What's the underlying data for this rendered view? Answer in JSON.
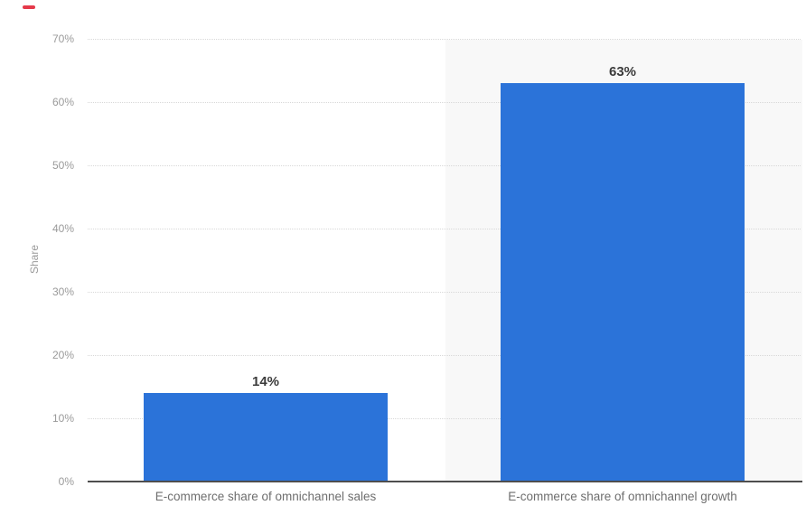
{
  "chart_data": {
    "type": "bar",
    "title": "",
    "categories": [
      "E-commerce share of omnichannel sales",
      "E-commerce share of omnichannel growth"
    ],
    "values": [
      14,
      63
    ],
    "value_labels": [
      "14%",
      "63%"
    ],
    "ylabel": "Share",
    "xlabel": "",
    "y_ticks": [
      "0%",
      "10%",
      "20%",
      "30%",
      "40%",
      "50%",
      "60%",
      "70%"
    ],
    "ylim": [
      0,
      70
    ],
    "grid": "horizontal-dotted",
    "legend": "none",
    "bar_color": "#2b73d9",
    "highlight_band": {
      "over_category_index": 1,
      "color": "#f8f8f8"
    },
    "axis_line_color": "#4e4e4e",
    "tick_label_color": "#9a9a9a",
    "value_label_color": "#3b3b3b",
    "category_label_color": "#6e6e6e"
  },
  "decorations": {
    "red_marker_color": "#e5394a"
  }
}
